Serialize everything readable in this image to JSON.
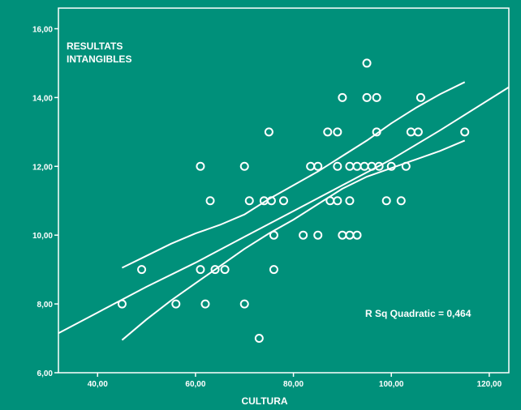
{
  "chart_data": {
    "type": "scatter",
    "xlabel": "CULTURA",
    "ylabel_lines": [
      "RESULTATS",
      "INTANGIBLES"
    ],
    "annotation": "R Sq Quadratic = 0,464",
    "xlim": [
      32,
      124
    ],
    "ylim": [
      6,
      16.6
    ],
    "xticks": [
      40,
      60,
      80,
      100,
      120
    ],
    "xtick_labels": [
      "40,00",
      "60,00",
      "80,00",
      "100,00",
      "120,00"
    ],
    "yticks": [
      6,
      8,
      10,
      12,
      14,
      16
    ],
    "ytick_labels": [
      "6,00",
      "8,00",
      "10,00",
      "12,00",
      "14,00",
      "16,00"
    ],
    "colors": {
      "background": "#00907a",
      "foreground": "#ffffff"
    },
    "points": [
      {
        "x": 45,
        "y": 8
      },
      {
        "x": 49,
        "y": 9
      },
      {
        "x": 56,
        "y": 8
      },
      {
        "x": 61,
        "y": 12
      },
      {
        "x": 61,
        "y": 9
      },
      {
        "x": 62,
        "y": 8
      },
      {
        "x": 63,
        "y": 11
      },
      {
        "x": 64,
        "y": 9
      },
      {
        "x": 66,
        "y": 9
      },
      {
        "x": 70,
        "y": 12
      },
      {
        "x": 70,
        "y": 8
      },
      {
        "x": 71,
        "y": 11
      },
      {
        "x": 73,
        "y": 7
      },
      {
        "x": 74,
        "y": 11
      },
      {
        "x": 75,
        "y": 13
      },
      {
        "x": 75.5,
        "y": 11
      },
      {
        "x": 76,
        "y": 10
      },
      {
        "x": 76,
        "y": 9
      },
      {
        "x": 78,
        "y": 11
      },
      {
        "x": 82,
        "y": 10
      },
      {
        "x": 83.5,
        "y": 12
      },
      {
        "x": 85,
        "y": 12
      },
      {
        "x": 85,
        "y": 10
      },
      {
        "x": 87,
        "y": 13
      },
      {
        "x": 87.5,
        "y": 11
      },
      {
        "x": 89,
        "y": 13
      },
      {
        "x": 89,
        "y": 12
      },
      {
        "x": 89,
        "y": 11
      },
      {
        "x": 90,
        "y": 14
      },
      {
        "x": 90,
        "y": 10
      },
      {
        "x": 91.5,
        "y": 12
      },
      {
        "x": 91.5,
        "y": 11
      },
      {
        "x": 91.5,
        "y": 10
      },
      {
        "x": 93,
        "y": 12
      },
      {
        "x": 93,
        "y": 10
      },
      {
        "x": 94.5,
        "y": 12
      },
      {
        "x": 95,
        "y": 15
      },
      {
        "x": 95,
        "y": 14
      },
      {
        "x": 96,
        "y": 12
      },
      {
        "x": 97,
        "y": 14
      },
      {
        "x": 97,
        "y": 13
      },
      {
        "x": 97.5,
        "y": 12
      },
      {
        "x": 99,
        "y": 11
      },
      {
        "x": 100,
        "y": 12
      },
      {
        "x": 102,
        "y": 11
      },
      {
        "x": 103,
        "y": 12
      },
      {
        "x": 104,
        "y": 13
      },
      {
        "x": 105.5,
        "y": 13
      },
      {
        "x": 106,
        "y": 14
      },
      {
        "x": 115,
        "y": 13
      }
    ],
    "fit_line": [
      {
        "x": 32,
        "y": 7.15
      },
      {
        "x": 40,
        "y": 7.75
      },
      {
        "x": 50,
        "y": 8.5
      },
      {
        "x": 60,
        "y": 9.2
      },
      {
        "x": 70,
        "y": 9.95
      },
      {
        "x": 80,
        "y": 10.7
      },
      {
        "x": 90,
        "y": 11.45
      },
      {
        "x": 100,
        "y": 12.2
      },
      {
        "x": 110,
        "y": 13.05
      },
      {
        "x": 124,
        "y": 14.3
      }
    ],
    "upper_band": [
      {
        "x": 45,
        "y": 9.05
      },
      {
        "x": 50,
        "y": 9.4
      },
      {
        "x": 55,
        "y": 9.75
      },
      {
        "x": 60,
        "y": 10.05
      },
      {
        "x": 65,
        "y": 10.3
      },
      {
        "x": 70,
        "y": 10.6
      },
      {
        "x": 75,
        "y": 11.05
      },
      {
        "x": 80,
        "y": 11.45
      },
      {
        "x": 85,
        "y": 11.85
      },
      {
        "x": 90,
        "y": 12.3
      },
      {
        "x": 95,
        "y": 12.75
      },
      {
        "x": 100,
        "y": 13.25
      },
      {
        "x": 105,
        "y": 13.7
      },
      {
        "x": 110,
        "y": 14.1
      },
      {
        "x": 115,
        "y": 14.45
      }
    ],
    "lower_band": [
      {
        "x": 45,
        "y": 6.95
      },
      {
        "x": 50,
        "y": 7.55
      },
      {
        "x": 55,
        "y": 8.1
      },
      {
        "x": 60,
        "y": 8.6
      },
      {
        "x": 65,
        "y": 9.1
      },
      {
        "x": 70,
        "y": 9.6
      },
      {
        "x": 75,
        "y": 10.05
      },
      {
        "x": 80,
        "y": 10.45
      },
      {
        "x": 85,
        "y": 10.9
      },
      {
        "x": 90,
        "y": 11.35
      },
      {
        "x": 95,
        "y": 11.7
      },
      {
        "x": 100,
        "y": 11.95
      },
      {
        "x": 105,
        "y": 12.2
      },
      {
        "x": 110,
        "y": 12.45
      },
      {
        "x": 115,
        "y": 12.75
      }
    ]
  }
}
